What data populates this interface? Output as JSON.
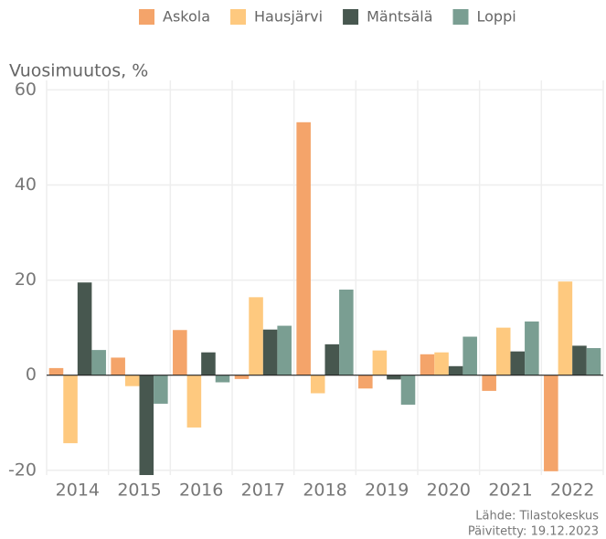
{
  "chart_data": {
    "type": "bar",
    "y_axis_title": "Vuosimuutos, %",
    "source": [
      "Lähde: Tilastokeskus",
      "Päivitetty: 19.12.2023"
    ],
    "categories": [
      "2014",
      "2015",
      "2016",
      "2017",
      "2018",
      "2019",
      "2020",
      "2021",
      "2022"
    ],
    "series": [
      {
        "name": "Askola",
        "color": "#f4a46a",
        "values": [
          1.5,
          3.7,
          9.5,
          -0.8,
          53.2,
          -2.8,
          4.4,
          -3.3,
          -20.2
        ]
      },
      {
        "name": "Hausjärvi",
        "color": "#fec97f",
        "values": [
          -14.3,
          -2.3,
          -11.0,
          16.4,
          -3.8,
          5.2,
          4.8,
          10.0,
          19.7
        ]
      },
      {
        "name": "Mäntsälä",
        "color": "#47574f",
        "values": [
          19.5,
          -21,
          4.8,
          9.6,
          6.5,
          -0.9,
          1.9,
          5.0,
          6.2
        ]
      },
      {
        "name": "Loppi",
        "color": "#7a9e92",
        "values": [
          5.3,
          -6.0,
          -1.5,
          10.4,
          18.0,
          -6.2,
          8.1,
          11.3,
          5.7
        ]
      }
    ],
    "ylim": [
      -21,
      62
    ],
    "yticks": [
      -20,
      0,
      20,
      40,
      60
    ],
    "grid": true,
    "legend": "top"
  }
}
